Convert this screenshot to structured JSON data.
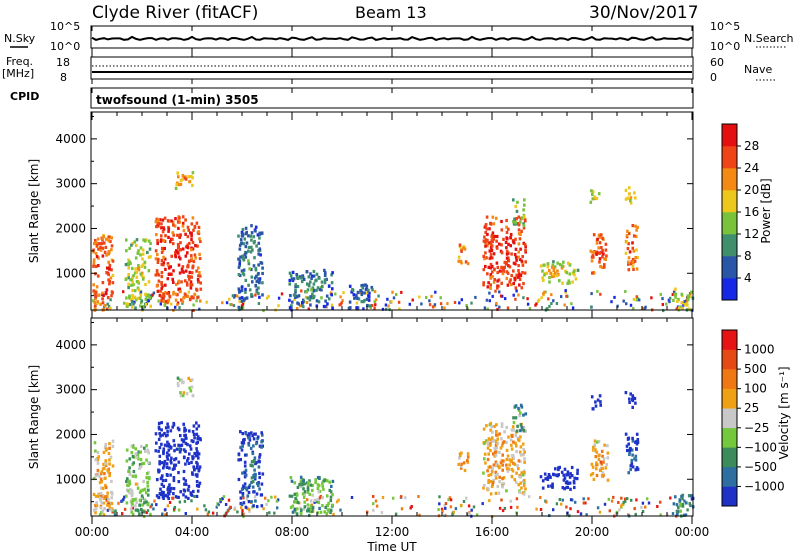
{
  "header": {
    "title": "Clyde River (fitACF)",
    "beam": "Beam 13",
    "date": "30/Nov/2017"
  },
  "top_panels": {
    "nsky_label": "N.Sky",
    "nsky_ticks": [
      "10^5",
      "10^0"
    ],
    "nsearch_label": "N.Search",
    "nsearch_ticks": [
      "10^5",
      "10^0"
    ],
    "freq_label": "Freq.",
    "freq_unit": "[MHz]",
    "freq_ticks": [
      "18",
      "8"
    ],
    "nave_label": "Nave",
    "nave_ticks": [
      "60",
      "0"
    ],
    "cpid_label": "CPID",
    "cpid_value": "twofsound (1-min) 3505"
  },
  "chart_data": [
    {
      "type": "heatmap",
      "name": "power",
      "ylabel": "Slant Range [km]",
      "yticks": [
        "1000",
        "2000",
        "3000",
        "4000"
      ],
      "ylim": [
        180,
        4600
      ],
      "xlim": [
        0,
        24
      ],
      "colorbar": {
        "label": "Power [dB]",
        "ticks": [
          "4",
          "8",
          "12",
          "16",
          "20",
          "24",
          "28"
        ],
        "colors": [
          "#1428e6",
          "#2a56a8",
          "#3f8f6c",
          "#78c23c",
          "#ecc81c",
          "#f48a14",
          "#ee4416",
          "#e60f0f"
        ]
      },
      "echo_regions": [
        {
          "t": [
            0.0,
            0.8
          ],
          "r": [
            200,
            1900
          ],
          "level": 0.9
        },
        {
          "t": [
            1.3,
            2.3
          ],
          "r": [
            250,
            1800
          ],
          "level": 0.6
        },
        {
          "t": [
            2.5,
            4.3
          ],
          "r": [
            400,
            2300
          ],
          "level": 0.95
        },
        {
          "t": [
            3.3,
            4.0
          ],
          "r": [
            2900,
            3300
          ],
          "level": 0.75
        },
        {
          "t": [
            5.8,
            6.8
          ],
          "r": [
            400,
            2100
          ],
          "level": 0.35
        },
        {
          "t": [
            7.8,
            9.6
          ],
          "r": [
            250,
            1100
          ],
          "level": 0.35
        },
        {
          "t": [
            10.2,
            11.2
          ],
          "r": [
            250,
            800
          ],
          "level": 0.3
        },
        {
          "t": [
            14.6,
            15.0
          ],
          "r": [
            1200,
            1700
          ],
          "level": 0.8
        },
        {
          "t": [
            15.6,
            17.3
          ],
          "r": [
            700,
            2300
          ],
          "level": 0.95
        },
        {
          "t": [
            16.8,
            17.3
          ],
          "r": [
            2100,
            2700
          ],
          "level": 0.55
        },
        {
          "t": [
            17.9,
            19.4
          ],
          "r": [
            800,
            1300
          ],
          "level": 0.65
        },
        {
          "t": [
            19.9,
            20.6
          ],
          "r": [
            1000,
            1900
          ],
          "level": 0.9
        },
        {
          "t": [
            21.3,
            21.8
          ],
          "r": [
            1100,
            2100
          ],
          "level": 0.85
        },
        {
          "t": [
            21.3,
            21.7
          ],
          "r": [
            2600,
            3000
          ],
          "level": 0.7
        },
        {
          "t": [
            19.9,
            20.3
          ],
          "r": [
            2600,
            2900
          ],
          "level": 0.6
        },
        {
          "t": [
            23.2,
            24.0
          ],
          "r": [
            200,
            700
          ],
          "level": 0.6
        }
      ]
    },
    {
      "type": "heatmap",
      "name": "velocity",
      "ylabel": "Slant Range [km]",
      "yticks": [
        "1000",
        "2000",
        "3000",
        "4000"
      ],
      "ylim": [
        180,
        4600
      ],
      "xlim": [
        0,
        24
      ],
      "xlabel": "Time UT",
      "xticks": [
        "00:00",
        "04:00",
        "08:00",
        "12:00",
        "16:00",
        "20:00",
        "00:00"
      ],
      "colorbar": {
        "label": "Velocity [m s⁻¹]",
        "ticks": [
          "1000",
          "500",
          "100",
          "25",
          "−25",
          "−100",
          "−500",
          "−1000"
        ],
        "colors": [
          "#1e32c8",
          "#2c6fa0",
          "#3b8c5a",
          "#74c83c",
          "#c8c8c8",
          "#f0a014",
          "#f07814",
          "#e64a14",
          "#e61414"
        ]
      },
      "echo_regions": [
        {
          "t": [
            0.0,
            0.8
          ],
          "r": [
            200,
            1900
          ],
          "level": 0.7
        },
        {
          "t": [
            1.3,
            2.3
          ],
          "r": [
            250,
            1800
          ],
          "level": 0.5
        },
        {
          "t": [
            2.5,
            4.3
          ],
          "r": [
            600,
            2300
          ],
          "level": 0.05
        },
        {
          "t": [
            3.3,
            4.0
          ],
          "r": [
            2900,
            3300
          ],
          "level": 0.6
        },
        {
          "t": [
            5.8,
            6.8
          ],
          "r": [
            400,
            2100
          ],
          "level": 0.2
        },
        {
          "t": [
            7.8,
            9.6
          ],
          "r": [
            250,
            1100
          ],
          "level": 0.45
        },
        {
          "t": [
            14.6,
            15.0
          ],
          "r": [
            1200,
            1700
          ],
          "level": 0.75
        },
        {
          "t": [
            15.6,
            17.3
          ],
          "r": [
            700,
            2300
          ],
          "level": 0.7
        },
        {
          "t": [
            16.8,
            17.3
          ],
          "r": [
            2100,
            2700
          ],
          "level": 0.4
        },
        {
          "t": [
            17.9,
            19.4
          ],
          "r": [
            800,
            1300
          ],
          "level": 0.05
        },
        {
          "t": [
            19.9,
            20.6
          ],
          "r": [
            1000,
            1900
          ],
          "level": 0.7
        },
        {
          "t": [
            21.3,
            21.8
          ],
          "r": [
            1100,
            2100
          ],
          "level": 0.15
        },
        {
          "t": [
            21.3,
            21.7
          ],
          "r": [
            2600,
            3000
          ],
          "level": 0.1
        },
        {
          "t": [
            19.9,
            20.3
          ],
          "r": [
            2600,
            2900
          ],
          "level": 0.05
        },
        {
          "t": [
            23.2,
            24.0
          ],
          "r": [
            200,
            700
          ],
          "level": 0.35
        }
      ]
    }
  ]
}
